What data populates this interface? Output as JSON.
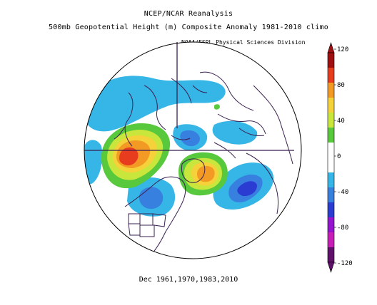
{
  "header": {
    "line1": "NCEP/NCAR Reanalysis",
    "line2": "500mb Geopotential Height (m) Composite Anomaly 1981-2010 climo",
    "credit": "NOAA/ESRL Physical Sciences Division"
  },
  "footer": {
    "dates": "Dec 1961,1970,1983,2010"
  },
  "colorbar": {
    "ticks": [
      "120",
      "80",
      "40",
      "0",
      "-40",
      "-80",
      "-120"
    ],
    "colors": [
      "#a01010",
      "#e83c1e",
      "#f29a24",
      "#f5d23a",
      "#c8e63c",
      "#58c83c",
      "#ffffff",
      "#ffffff",
      "#36b6e6",
      "#3880e0",
      "#2a3cd2",
      "#9614d0",
      "#c81eb8",
      "#60106a"
    ]
  }
}
